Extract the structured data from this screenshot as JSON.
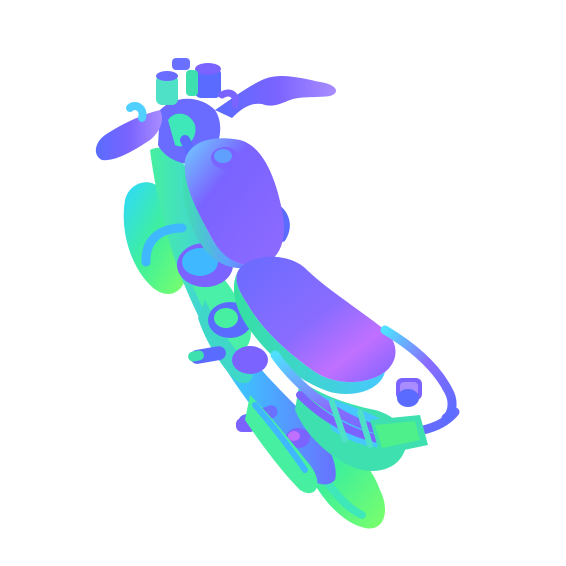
{
  "scene": {
    "subject": "motorcycle-normal-map-render",
    "background_color": "#ffffff",
    "palette": {
      "violet": "#7a63ff",
      "blue": "#5a6cff",
      "lavender": "#a98cff",
      "cyan": "#3fb8ff",
      "teal": "#35e0c8",
      "green": "#4df08a",
      "lime": "#7cff6a",
      "magenta": "#c070ff"
    }
  }
}
